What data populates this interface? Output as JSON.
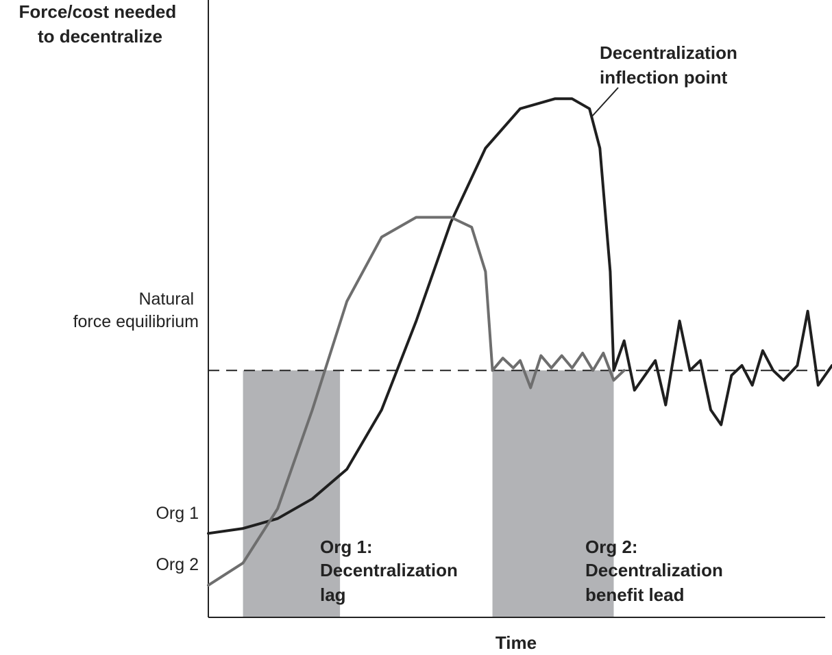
{
  "chart_data": {
    "type": "line",
    "ylabel_lines": [
      "Force/cost needed",
      "to decentralize"
    ],
    "xlabel": "Time",
    "y_ticks": [
      {
        "label": "Org 1"
      },
      {
        "label": "Org 2"
      }
    ],
    "equilibrium_label_lines": [
      "Natural",
      "force equilibrium"
    ],
    "annotations": {
      "inflection": [
        "Decentralization",
        "inflection point"
      ],
      "org1_region": [
        "Org 1:",
        "Decentralization",
        "lag"
      ],
      "org2_region": [
        "Org 2:",
        "Decentralization",
        "benefit lead"
      ]
    },
    "series": [
      {
        "name": "Org 1",
        "color": "#1f1f1f",
        "points": [
          [
            0.0,
            0.17
          ],
          [
            1.0,
            0.18
          ],
          [
            2.0,
            0.2
          ],
          [
            3.0,
            0.24
          ],
          [
            4.0,
            0.3
          ],
          [
            5.0,
            0.42
          ],
          [
            6.0,
            0.6
          ],
          [
            7.0,
            0.8
          ],
          [
            8.0,
            0.95
          ],
          [
            9.0,
            1.03
          ],
          [
            10.0,
            1.05
          ],
          [
            10.5,
            1.05
          ],
          [
            11.0,
            1.03
          ],
          [
            11.3,
            0.95
          ],
          [
            11.6,
            0.7
          ],
          [
            11.7,
            0.5
          ],
          [
            12.0,
            0.56
          ],
          [
            12.3,
            0.46
          ],
          [
            12.9,
            0.52
          ],
          [
            13.2,
            0.43
          ],
          [
            13.6,
            0.6
          ],
          [
            13.9,
            0.5
          ],
          [
            14.2,
            0.52
          ],
          [
            14.5,
            0.42
          ],
          [
            14.8,
            0.39
          ],
          [
            15.1,
            0.49
          ],
          [
            15.4,
            0.51
          ],
          [
            15.7,
            0.47
          ],
          [
            16.0,
            0.54
          ],
          [
            16.3,
            0.5
          ],
          [
            16.6,
            0.48
          ],
          [
            17.0,
            0.51
          ],
          [
            17.3,
            0.62
          ],
          [
            17.6,
            0.47
          ],
          [
            18.0,
            0.51
          ]
        ]
      },
      {
        "name": "Org 2",
        "color": "#6e6e6e",
        "points": [
          [
            0.0,
            0.065
          ],
          [
            1.0,
            0.11
          ],
          [
            2.0,
            0.22
          ],
          [
            3.0,
            0.42
          ],
          [
            4.0,
            0.64
          ],
          [
            5.0,
            0.77
          ],
          [
            6.0,
            0.81
          ],
          [
            7.0,
            0.81
          ],
          [
            7.6,
            0.79
          ],
          [
            8.0,
            0.7
          ],
          [
            8.2,
            0.5
          ],
          [
            8.5,
            0.525
          ],
          [
            8.8,
            0.505
          ],
          [
            9.0,
            0.52
          ],
          [
            9.3,
            0.465
          ],
          [
            9.6,
            0.53
          ],
          [
            9.9,
            0.505
          ],
          [
            10.2,
            0.53
          ],
          [
            10.5,
            0.505
          ],
          [
            10.8,
            0.535
          ],
          [
            11.1,
            0.5
          ],
          [
            11.4,
            0.535
          ],
          [
            11.7,
            0.48
          ],
          [
            12.0,
            0.5
          ]
        ]
      }
    ],
    "equilibrium_y": 0.5,
    "shaded_regions": [
      {
        "x_start": 1.0,
        "x_end": 3.8
      },
      {
        "x_start": 8.2,
        "x_end": 11.7
      }
    ],
    "xlim": [
      0,
      18
    ],
    "ylim": [
      0,
      1.25
    ],
    "grid": false,
    "legend": "none"
  }
}
